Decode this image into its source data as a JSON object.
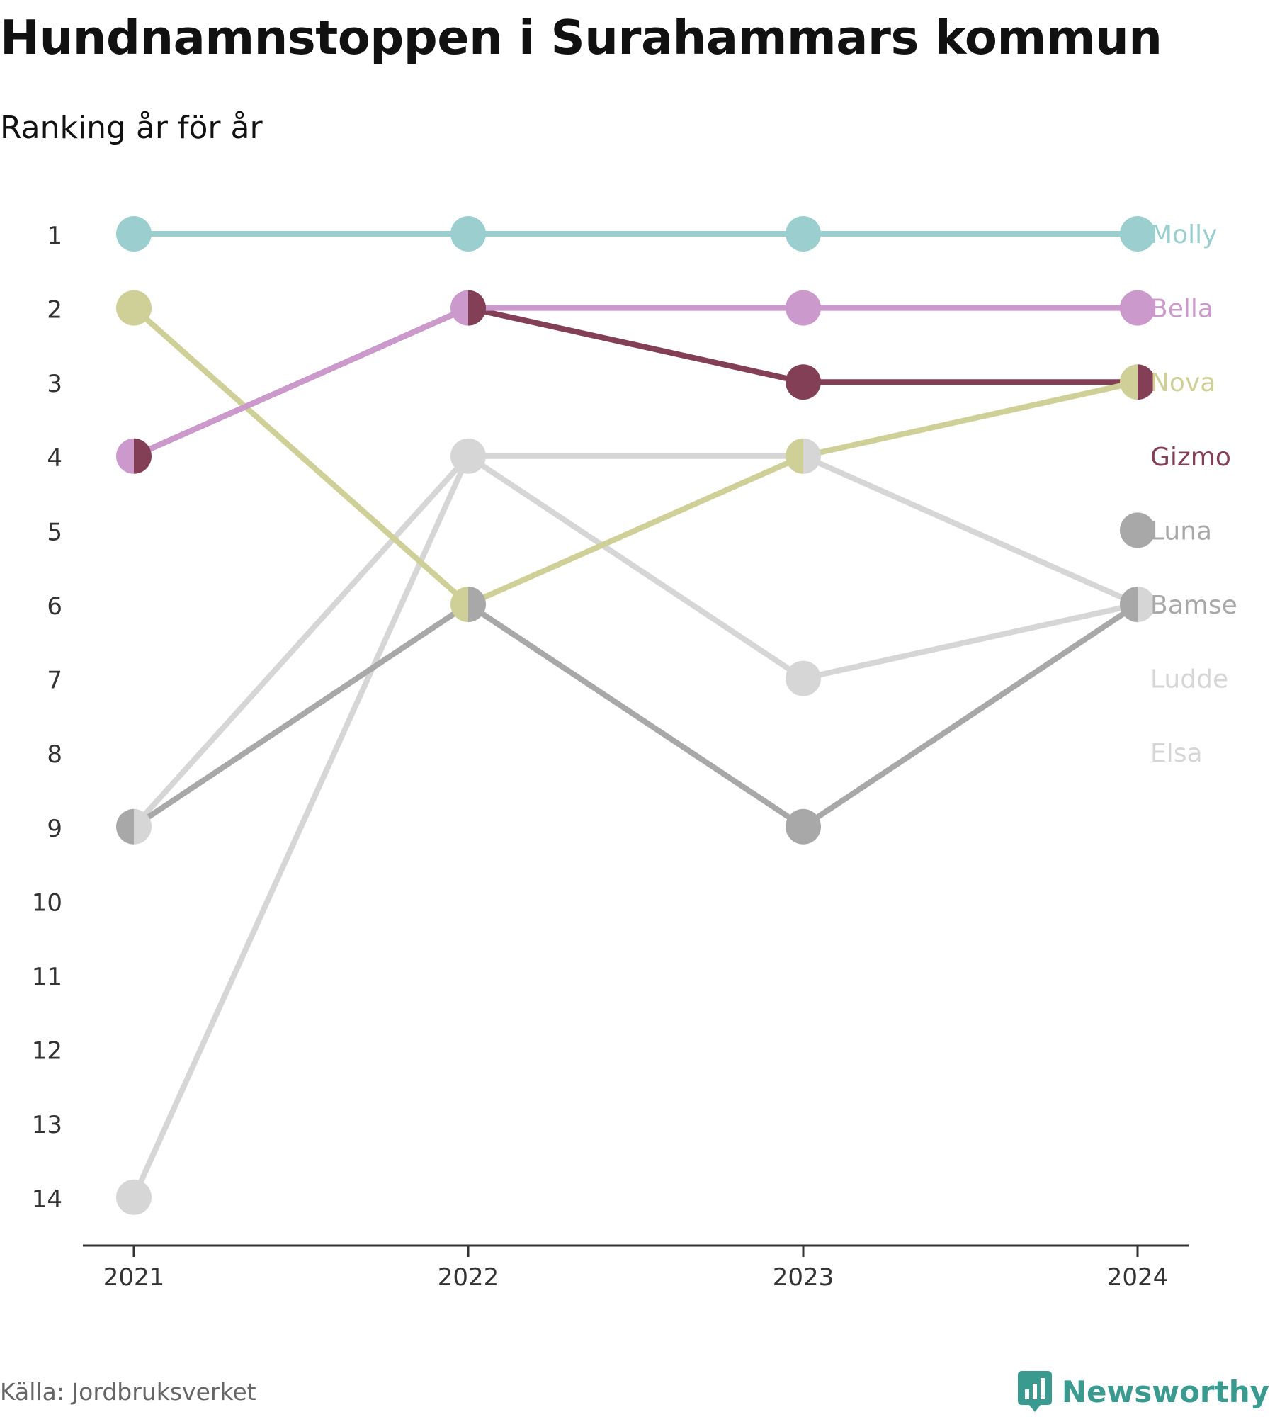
{
  "title": "Hundnamnstoppen i Surahammars kommun",
  "subtitle": "Ranking år för år",
  "source": "Källa: Jordbruksverket",
  "brand": {
    "name": "Newsworthy",
    "icon": "newsworthy-logo-icon",
    "color": "#3a9a8f"
  },
  "chart_data": {
    "type": "line",
    "title": "Hundnamnstoppen i Surahammars kommun",
    "subtitle": "Ranking år för år",
    "x": [
      "2021",
      "2022",
      "2023",
      "2024"
    ],
    "y_ticks": [
      "1",
      "2",
      "3",
      "4",
      "5",
      "6",
      "7",
      "8",
      "9",
      "10",
      "11",
      "12",
      "13",
      "14"
    ],
    "ylim": [
      1,
      14
    ],
    "y_inverted": true,
    "grid": false,
    "legend": "labels at end of lines (right)",
    "series": [
      {
        "name": "Elsa",
        "color": "#d6d6d6",
        "values": [
          14,
          4,
          7,
          6
        ]
      },
      {
        "name": "Ludde",
        "color": "#d6d6d6",
        "values": [
          9,
          4,
          4,
          6
        ]
      },
      {
        "name": "Bamse",
        "color": "#a8a8a8",
        "values": [
          9,
          6,
          9,
          6
        ]
      },
      {
        "name": "Luna",
        "color": "#a8a8a8",
        "values": [
          null,
          null,
          null,
          5
        ]
      },
      {
        "name": "Gizmo",
        "color": "#823f55",
        "values": [
          4,
          2,
          3,
          3
        ]
      },
      {
        "name": "Nova",
        "color": "#cfcf98",
        "values": [
          2,
          6,
          4,
          3
        ]
      },
      {
        "name": "Bella",
        "color": "#cc99cc",
        "values": [
          4,
          2,
          2,
          2
        ]
      },
      {
        "name": "Molly",
        "color": "#9bcfcf",
        "values": [
          1,
          1,
          1,
          1
        ]
      }
    ]
  }
}
